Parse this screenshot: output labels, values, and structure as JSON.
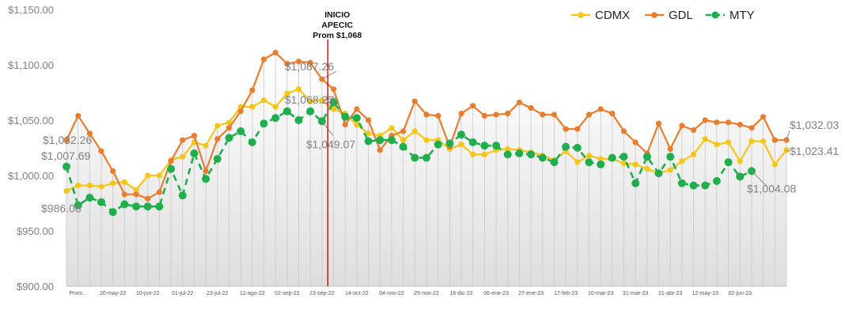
{
  "chart_data": {
    "type": "line",
    "ylim": [
      900,
      1150
    ],
    "y_ticks": [
      "$900.00",
      "$950.00",
      "$1,000.00",
      "$1,050.00",
      "$1,100.00",
      "$1,150.00"
    ],
    "x_tick_labels": [
      "Prom...",
      "20-may-22",
      "10-jun-22",
      "01-jul-22",
      "22-jul-22",
      "12-ago-22",
      "02-sep-22",
      "23-sep-22",
      "14-oct-22",
      "04-nov-22",
      "25-nov-22",
      "16-dic-22",
      "06-ene-23",
      "27-ene-23",
      "17-feb-23",
      "10-mar-23",
      "31-mar-23",
      "21-abr-23",
      "12-may-23",
      "02-jun-23"
    ],
    "grid": "vertical lines at each data point; shaded area under top series",
    "legend_position": "top-right",
    "colors": {
      "CDMX": "#F5C518",
      "GDL": "#E87D2F",
      "MTY": "#1FAE4B",
      "marker_line": "#C00000"
    },
    "series": [
      {
        "name": "CDMX",
        "style": "solid",
        "values": [
          986,
          991,
          991,
          990,
          993,
          994,
          987,
          1000,
          1000,
          1014,
          1017,
          1030,
          1027,
          1045,
          1048,
          1062,
          1062,
          1068,
          1062,
          1074,
          1078,
          1067,
          1068,
          1060,
          1056,
          1046,
          1038,
          1036,
          1043,
          1032,
          1040,
          1032,
          1032,
          1024,
          1028,
          1019,
          1019,
          1023,
          1024,
          1023,
          1021,
          1018,
          1014,
          1022,
          1012,
          1018,
          1015,
          1015,
          1011,
          1010,
          1006,
          1002,
          1005,
          1013,
          1019,
          1033,
          1028,
          1030,
          1013,
          1031,
          1031,
          1010,
          1023
        ]
      },
      {
        "name": "GDL",
        "style": "solid",
        "values": [
          1032,
          1054,
          1038,
          1022,
          1004,
          983,
          983,
          979,
          985,
          1013,
          1032,
          1036,
          1004,
          1033,
          1043,
          1058,
          1077,
          1105,
          1111,
          1101,
          1103,
          1102,
          1087,
          1078,
          1046,
          1060,
          1050,
          1023,
          1036,
          1040,
          1067,
          1055,
          1054,
          1026,
          1056,
          1063,
          1054,
          1055,
          1056,
          1066,
          1061,
          1055,
          1055,
          1042,
          1042,
          1055,
          1060,
          1056,
          1040,
          1030,
          1020,
          1047,
          1024,
          1045,
          1041,
          1050,
          1048,
          1048,
          1046,
          1043,
          1053,
          1032,
          1032
        ]
      },
      {
        "name": "MTY",
        "style": "dashed",
        "values": [
          1008,
          973,
          980,
          976,
          967,
          974,
          972,
          972,
          972,
          1006,
          982,
          1020,
          997,
          1015,
          1034,
          1040,
          1030,
          1047,
          1052,
          1058,
          1050,
          1058,
          1049,
          1066,
          1053,
          1052,
          1031,
          1032,
          1032,
          1026,
          1016,
          1016,
          1028,
          1029,
          1037,
          1030,
          1027,
          1027,
          1019,
          1020,
          1019,
          1016,
          1012,
          1026,
          1025,
          1012,
          1010,
          1016,
          1017,
          993,
          1017,
          1002,
          1017,
          993,
          991,
          991,
          995,
          1012,
          999,
          1004
        ]
      }
    ],
    "annotations": [
      {
        "label": "$1,032.26",
        "series": "GDL",
        "index": 0
      },
      {
        "label": "$1,007.69",
        "series": "MTY",
        "index": 0
      },
      {
        "label": "$986.08",
        "series": "CDMX",
        "index": 0
      },
      {
        "label": "$1,087.26",
        "series": "GDL",
        "index": 22
      },
      {
        "label": "$1,068.23",
        "series": "CDMX",
        "index": 22
      },
      {
        "label": "$1,049.07",
        "series": "MTY",
        "index": 22
      },
      {
        "label": "$1,032.03",
        "series": "GDL",
        "index": 62
      },
      {
        "label": "$1,023.41",
        "series": "CDMX",
        "index": 62
      },
      {
        "label": "$1,004.08",
        "series": "MTY",
        "index": 59
      }
    ],
    "vertical_marker": {
      "index": 22.5,
      "label_lines": [
        "INICIO",
        "APECIC",
        "Prom $1,068"
      ]
    }
  }
}
